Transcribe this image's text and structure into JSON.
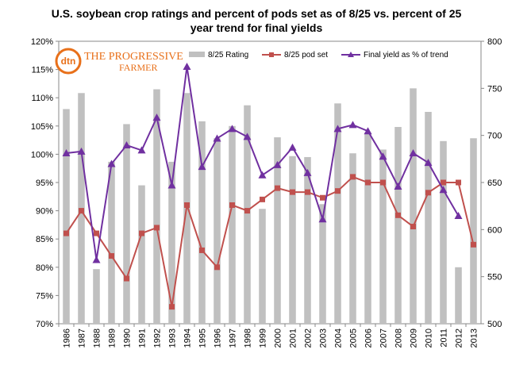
{
  "chart_data": {
    "type": "bar",
    "title_line1": "U.S. soybean crop ratings and  percent of pods set as of 8/25 vs. percent of 25",
    "title_line2": "year trend for final yields",
    "logo": {
      "badge": "dtn",
      "name_line1": "THE PROGRESSIVE",
      "name_line2": "FARMER",
      "colors": {
        "primary": "#e8701a"
      }
    },
    "categories": [
      "1986",
      "1987",
      "1988",
      "1989",
      "1990",
      "1991",
      "1992",
      "1993",
      "1994",
      "1995",
      "1996",
      "1997",
      "1998",
      "1999",
      "2000",
      "2001",
      "2002",
      "2003",
      "2004",
      "2005",
      "2006",
      "2007",
      "2008",
      "2009",
      "2010",
      "2011",
      "2012",
      "2013"
    ],
    "series": [
      {
        "name": "8/25 Rating",
        "kind": "bar",
        "axis": "right",
        "color": "#c0c0c0",
        "values": [
          728,
          745,
          558,
          672,
          712,
          647,
          749,
          672,
          745,
          715,
          697,
          710,
          732,
          622,
          698,
          678,
          677,
          627,
          734,
          681,
          703,
          685,
          709,
          750,
          725,
          694,
          560,
          697
        ]
      },
      {
        "name": "8/25 pod set",
        "kind": "line",
        "axis": "left",
        "color": "#c0504d",
        "marker": "square",
        "values": [
          86,
          90,
          86,
          82,
          78,
          86,
          87,
          73,
          91,
          83,
          80,
          91,
          90,
          92,
          94,
          93.3,
          93.3,
          92.3,
          93.5,
          96,
          95,
          95,
          89.2,
          87.2,
          93.2,
          95,
          95,
          84
        ]
      },
      {
        "name": "Final yield as % of trend",
        "kind": "line",
        "axis": "left",
        "color": "#7030a0",
        "marker": "triangle",
        "values": [
          100.2,
          100.5,
          81.3,
          98.3,
          101.6,
          100.7,
          106.5,
          94.5,
          115.5,
          97.8,
          102.8,
          104.5,
          103.1,
          96.3,
          98.1,
          101.2,
          96.7,
          88.5,
          104.5,
          105.2,
          104.1,
          99.6,
          94.3,
          100.2,
          98.5,
          93.7,
          89.1,
          null
        ]
      }
    ],
    "left_axis": {
      "min": 70,
      "max": 120,
      "step": 5,
      "format": "percent"
    },
    "right_axis": {
      "min": 500,
      "max": 800,
      "step": 50
    },
    "grid": false,
    "legend_placement": "top"
  }
}
